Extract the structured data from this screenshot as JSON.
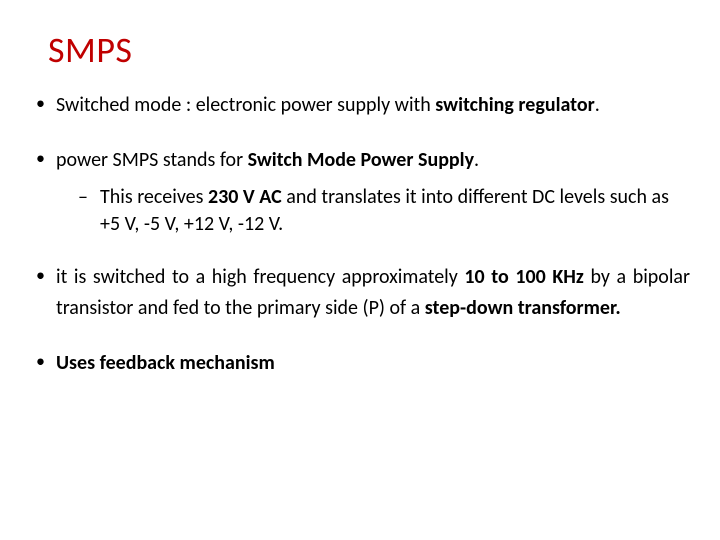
{
  "title": {
    "text": "SMPS",
    "color": "#c00000",
    "fontsize": 36
  },
  "bullets": [
    {
      "parts": [
        {
          "text": "Switched mode : electronic power supply with ",
          "bold": false
        },
        {
          "text": "switching regulator",
          "bold": true
        },
        {
          "text": ".",
          "bold": false
        }
      ],
      "sub": []
    },
    {
      "parts": [
        {
          "text": "power SMPS stands for ",
          "bold": false
        },
        {
          "text": "Switch Mode Power Supply",
          "bold": true
        },
        {
          "text": ".",
          "bold": false
        }
      ],
      "sub": [
        {
          "parts": [
            {
              "text": "This receives ",
              "bold": false
            },
            {
              "text": "230 V AC ",
              "bold": true
            },
            {
              "text": "and translates it into different DC levels such as +5 V, -5 V, +12 V, -12 V.",
              "bold": false
            }
          ]
        }
      ]
    },
    {
      "parts": [
        {
          "text": "it is switched to a high frequency approximately ",
          "bold": false
        },
        {
          "text": "10 to 100 KHz ",
          "bold": true
        },
        {
          "text": "by a bipolar transistor and fed to the primary side (P) of a ",
          "bold": false
        },
        {
          "text": "step-down transformer.",
          "bold": true
        }
      ],
      "sub": []
    },
    {
      "parts": [
        {
          "text": "Uses feedback mechanism",
          "bold": true
        }
      ],
      "sub": []
    }
  ],
  "text_color": "#000000",
  "background_color": "#ffffff",
  "body_fontsize": 20
}
